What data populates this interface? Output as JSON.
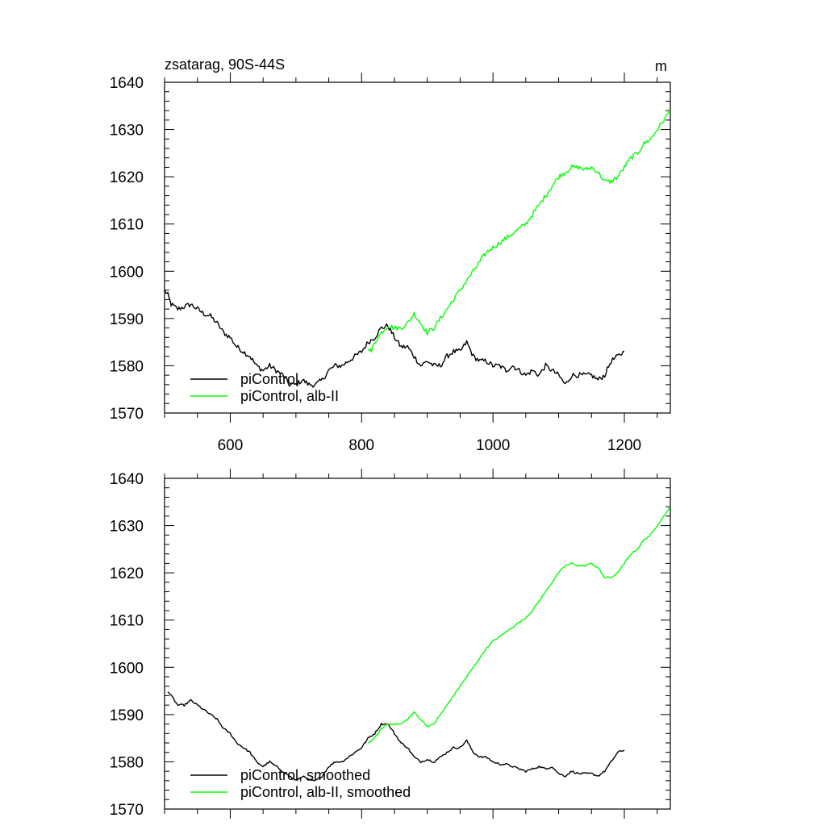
{
  "colors": {
    "control": "#000000",
    "experiment": "#00ff00"
  },
  "chart_data": [
    {
      "type": "line",
      "title": "zsatarag, 90S-44S",
      "units": "m",
      "xlim": [
        500,
        1270
      ],
      "ylim": [
        1570,
        1640
      ],
      "xticks": [
        600,
        800,
        1000,
        1200
      ],
      "xtick_labels": [
        "600",
        "800",
        "1000",
        "1200"
      ],
      "yticks": [
        1570,
        1580,
        1590,
        1600,
        1610,
        1620,
        1630,
        1640
      ],
      "ytick_labels": [
        "1570",
        "1580",
        "1590",
        "1600",
        "1610",
        "1620",
        "1630",
        "1640"
      ],
      "grid": false,
      "legend": "bottom-left",
      "series": [
        {
          "name": "piControl",
          "color_key": "control",
          "noise": 0.55,
          "x": [
            500,
            505,
            510,
            520,
            530,
            540,
            550,
            560,
            570,
            580,
            590,
            600,
            610,
            620,
            630,
            640,
            650,
            660,
            670,
            680,
            690,
            700,
            710,
            720,
            730,
            740,
            750,
            760,
            770,
            780,
            790,
            800,
            810,
            820,
            830,
            840,
            850,
            860,
            870,
            880,
            890,
            900,
            910,
            920,
            930,
            940,
            950,
            960,
            970,
            980,
            990,
            1000,
            1010,
            1020,
            1030,
            1040,
            1050,
            1060,
            1070,
            1080,
            1090,
            1100,
            1110,
            1120,
            1130,
            1140,
            1150,
            1160,
            1170,
            1180,
            1190,
            1200
          ],
          "y": [
            1596,
            1595,
            1593,
            1592,
            1592.5,
            1593,
            1592,
            1591,
            1590.5,
            1589,
            1587,
            1586,
            1584,
            1583,
            1582,
            1580,
            1579,
            1580,
            1579,
            1578,
            1576,
            1576,
            1577,
            1576,
            1576,
            1577,
            1579,
            1580,
            1580,
            1581,
            1582,
            1583,
            1585,
            1586,
            1588,
            1588.5,
            1586,
            1584,
            1584,
            1582,
            1580,
            1581,
            1580,
            1580,
            1582,
            1583,
            1583,
            1585,
            1582,
            1581,
            1581,
            1580,
            1580,
            1579,
            1580,
            1579,
            1578,
            1579,
            1578,
            1580,
            1579,
            1578,
            1576,
            1578,
            1578,
            1578,
            1578,
            1577,
            1578,
            1581,
            1582,
            1583
          ]
        },
        {
          "name": "piControl, alb-II",
          "color_key": "experiment",
          "noise": 0.5,
          "x": [
            810,
            815,
            820,
            830,
            840,
            850,
            860,
            870,
            880,
            890,
            900,
            910,
            920,
            930,
            940,
            950,
            960,
            970,
            980,
            990,
            1000,
            1010,
            1020,
            1030,
            1040,
            1050,
            1060,
            1070,
            1080,
            1090,
            1100,
            1110,
            1120,
            1130,
            1140,
            1150,
            1160,
            1170,
            1180,
            1190,
            1200,
            1210,
            1220,
            1230,
            1240,
            1250,
            1260,
            1270
          ],
          "y": [
            1584,
            1583,
            1585,
            1587,
            1588.5,
            1588,
            1588,
            1589,
            1591,
            1589,
            1587,
            1588,
            1590,
            1592,
            1594,
            1596,
            1598,
            1600,
            1602,
            1604,
            1605,
            1606,
            1607,
            1608,
            1609,
            1610,
            1612,
            1614,
            1616,
            1618,
            1620,
            1621,
            1622,
            1622,
            1621.5,
            1622,
            1621,
            1619,
            1619,
            1620,
            1622,
            1624,
            1625,
            1627,
            1628,
            1630,
            1632,
            1634
          ]
        }
      ]
    },
    {
      "type": "line",
      "xlim": [
        500,
        1270
      ],
      "ylim": [
        1570,
        1640
      ],
      "xticks": [
        600,
        800,
        1000,
        1200
      ],
      "yticks": [
        1570,
        1580,
        1590,
        1600,
        1610,
        1620,
        1630,
        1640
      ],
      "ytick_labels": [
        "1570",
        "1580",
        "1590",
        "1600",
        "1610",
        "1620",
        "1630",
        "1640"
      ],
      "grid": false,
      "legend": "bottom-left",
      "series": [
        {
          "name": "piControl, smoothed",
          "color_key": "control",
          "noise": 0.2,
          "x": [
            505,
            510,
            520,
            530,
            540,
            550,
            560,
            570,
            580,
            590,
            600,
            610,
            620,
            630,
            640,
            650,
            660,
            670,
            680,
            690,
            700,
            710,
            720,
            730,
            740,
            750,
            760,
            770,
            780,
            790,
            800,
            810,
            820,
            830,
            840,
            850,
            860,
            870,
            880,
            890,
            900,
            910,
            920,
            930,
            940,
            950,
            960,
            970,
            980,
            990,
            1000,
            1010,
            1020,
            1030,
            1040,
            1050,
            1060,
            1070,
            1080,
            1090,
            1100,
            1110,
            1120,
            1130,
            1140,
            1150,
            1160,
            1170,
            1180,
            1190,
            1200
          ],
          "y": [
            1595,
            1594,
            1592,
            1592,
            1593,
            1592,
            1591,
            1590,
            1589,
            1587,
            1586,
            1584,
            1583,
            1582,
            1580,
            1579,
            1580,
            1579,
            1578,
            1577,
            1576,
            1577,
            1576,
            1576,
            1577,
            1579,
            1580,
            1580,
            1581,
            1582,
            1583,
            1585,
            1586,
            1588,
            1588,
            1586,
            1584,
            1583,
            1581,
            1580,
            1580.5,
            1580,
            1581,
            1582,
            1583,
            1583,
            1584.5,
            1582,
            1581,
            1581,
            1580,
            1579.5,
            1579.5,
            1579,
            1578.5,
            1578,
            1578.5,
            1579,
            1578.5,
            1579,
            1577.5,
            1577,
            1578,
            1577.5,
            1577.5,
            1577.5,
            1577,
            1578,
            1580,
            1582,
            1582.5
          ]
        },
        {
          "name": "piControl, alb-II, smoothed",
          "color_key": "experiment",
          "noise": 0.15,
          "x": [
            810,
            820,
            830,
            840,
            850,
            860,
            870,
            880,
            890,
            900,
            910,
            920,
            930,
            940,
            950,
            960,
            970,
            980,
            990,
            1000,
            1010,
            1020,
            1030,
            1040,
            1050,
            1060,
            1070,
            1080,
            1090,
            1100,
            1110,
            1120,
            1130,
            1140,
            1150,
            1160,
            1170,
            1180,
            1190,
            1200,
            1210,
            1220,
            1230,
            1240,
            1250,
            1260,
            1270
          ],
          "y": [
            1584,
            1585,
            1587,
            1588,
            1588,
            1588,
            1589,
            1590.5,
            1589,
            1587.5,
            1588,
            1590,
            1592,
            1594,
            1596,
            1598,
            1600,
            1602,
            1604,
            1605.5,
            1606.5,
            1607.5,
            1608.5,
            1609.5,
            1610.5,
            1612,
            1614,
            1616,
            1618,
            1620,
            1621.5,
            1622,
            1621.5,
            1621.5,
            1622,
            1621,
            1619,
            1619,
            1620,
            1622,
            1624,
            1625,
            1627,
            1628,
            1630,
            1632,
            1634
          ]
        }
      ]
    }
  ]
}
